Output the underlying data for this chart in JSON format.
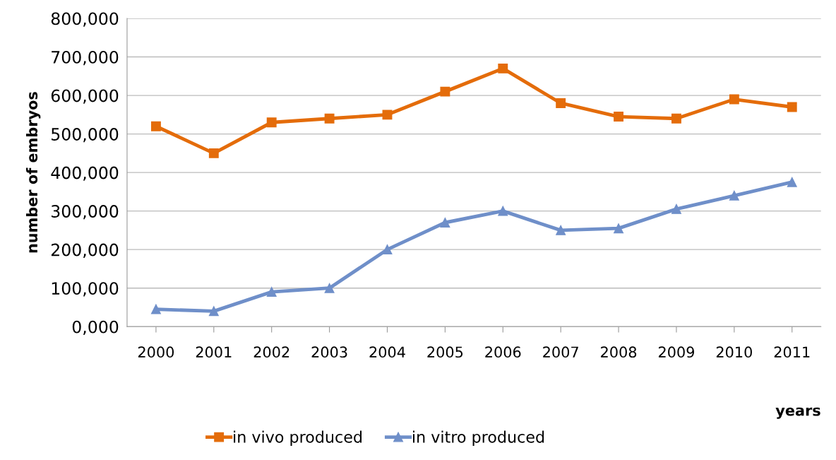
{
  "chart_data": {
    "type": "line",
    "xlabel": "years",
    "ylabel": "number of embryos",
    "categories": [
      "2000",
      "2001",
      "2002",
      "2003",
      "2004",
      "2005",
      "2006",
      "2007",
      "2008",
      "2009",
      "2010",
      "2011"
    ],
    "series": [
      {
        "name": "in vivo produced",
        "color": "#e46c0a",
        "marker": "square",
        "values": [
          520000,
          450000,
          530000,
          540000,
          550000,
          610000,
          670000,
          580000,
          545000,
          540000,
          590000,
          570000
        ]
      },
      {
        "name": "in vitro produced",
        "color": "#6f8fc9",
        "marker": "triangle",
        "values": [
          45000,
          40000,
          90000,
          100000,
          200000,
          270000,
          300000,
          250000,
          255000,
          305000,
          340000,
          375000
        ]
      }
    ],
    "ylim": [
      0,
      800000
    ],
    "yticks": [
      {
        "value": 0,
        "label": "0,000"
      },
      {
        "value": 100000,
        "label": "100,000"
      },
      {
        "value": 200000,
        "label": "200,000"
      },
      {
        "value": 300000,
        "label": "300,000"
      },
      {
        "value": 400000,
        "label": "400,000"
      },
      {
        "value": 500000,
        "label": "500,000"
      },
      {
        "value": 600000,
        "label": "600,000"
      },
      {
        "value": 700000,
        "label": "700,000"
      },
      {
        "value": 800000,
        "label": "800,000"
      }
    ],
    "grid": "y",
    "legend": "bottom",
    "line_style": "solid"
  }
}
